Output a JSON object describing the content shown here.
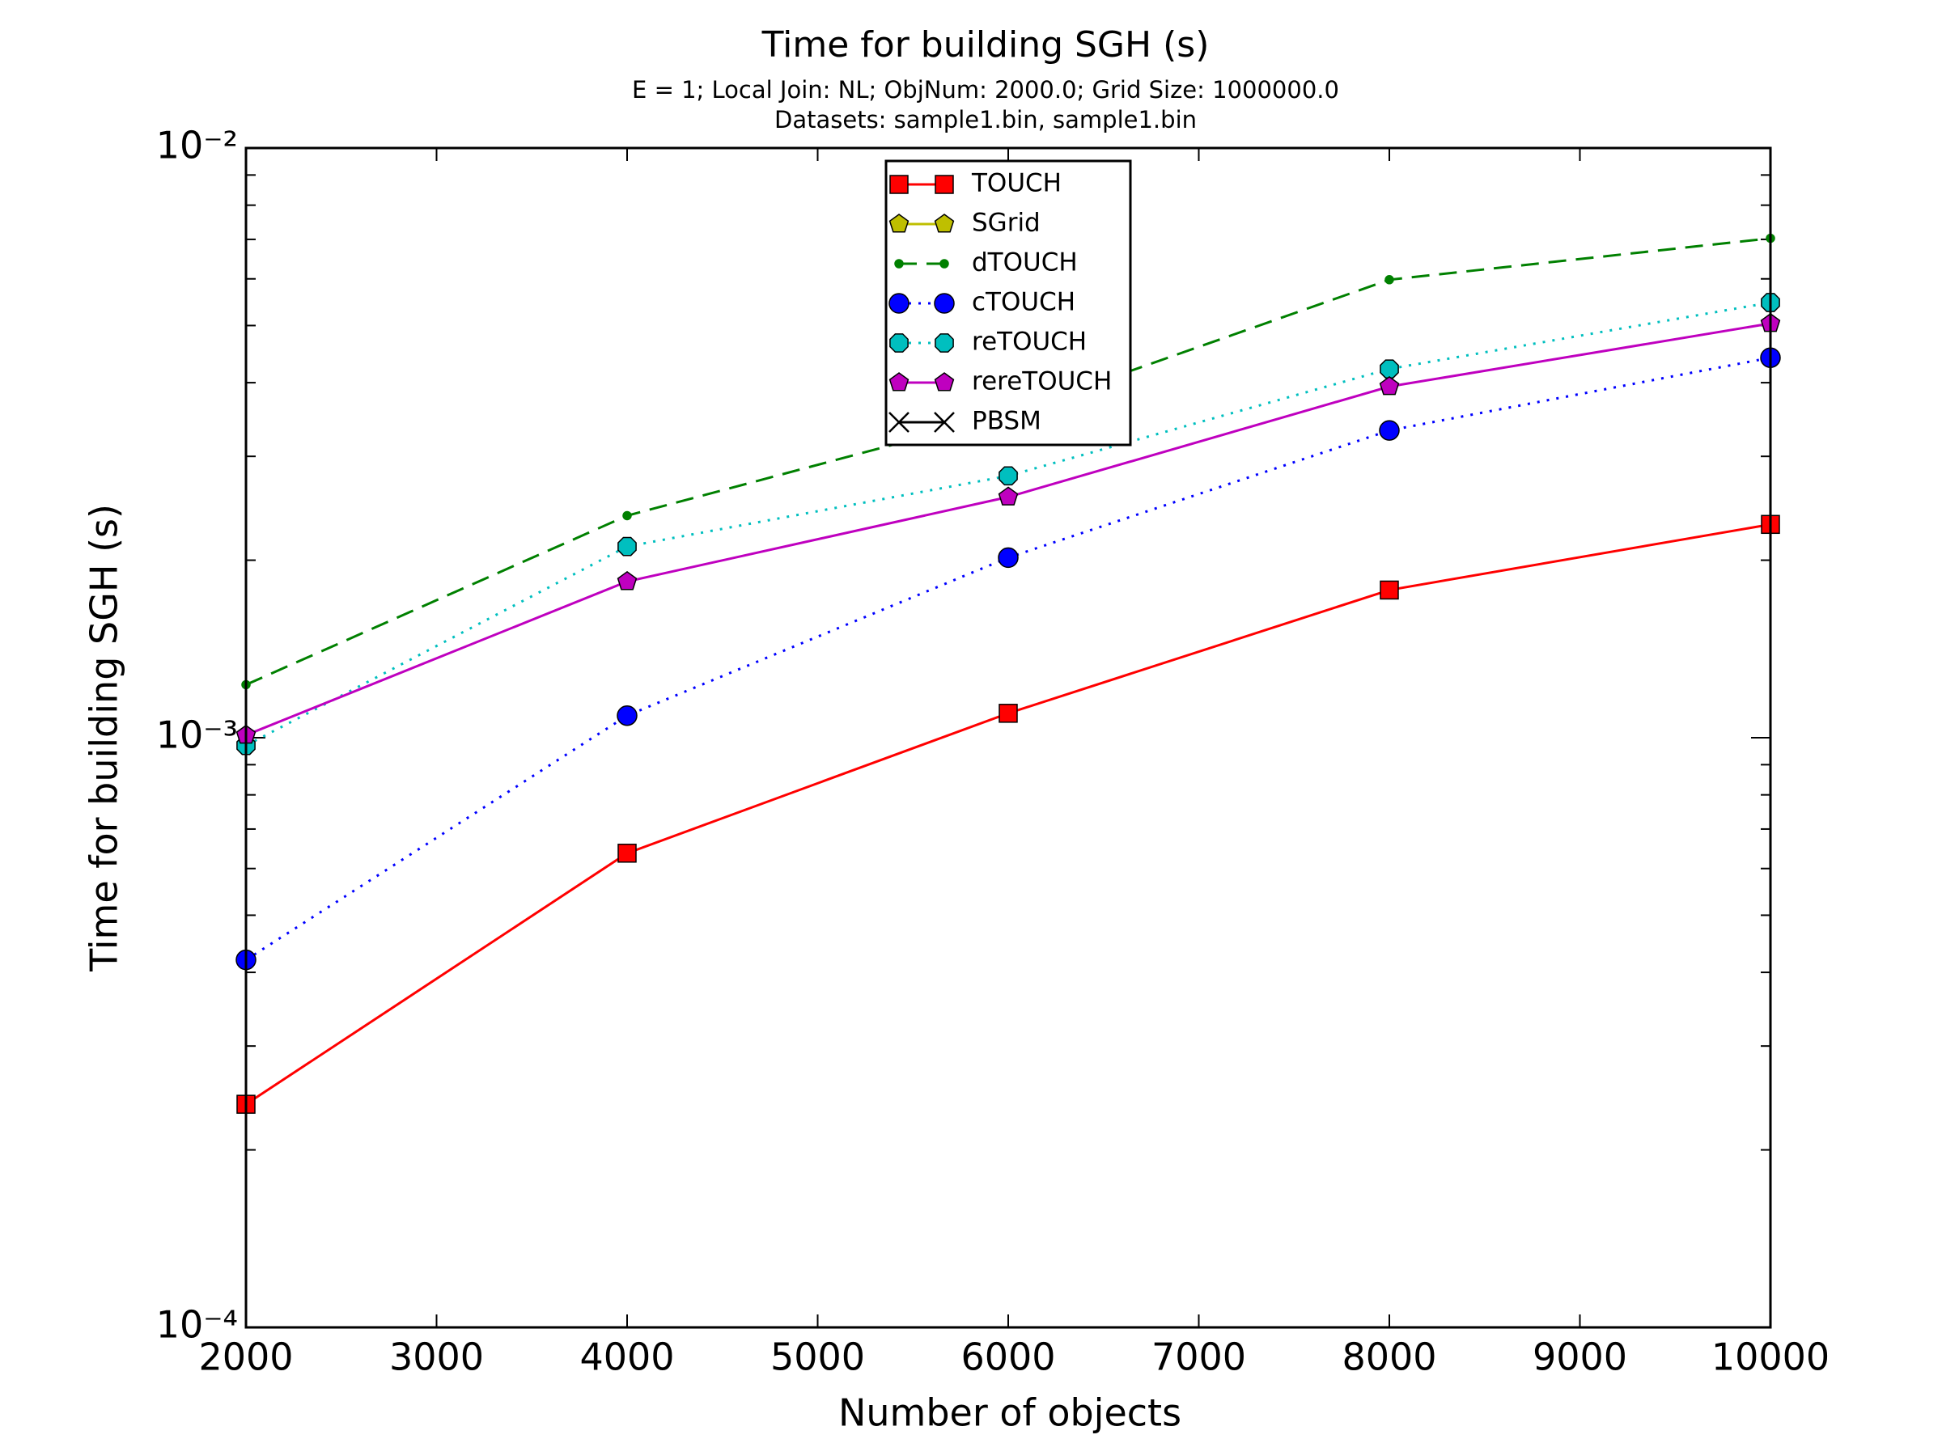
{
  "chart_data": {
    "type": "line",
    "title": "Time for building SGH (s)",
    "subtitle": [
      "E = 1; Local Join: NL; ObjNum: 2000.0; Grid Size: 1000000.0",
      "Datasets: sample1.bin, sample1.bin"
    ],
    "xlabel": "Number of objects",
    "ylabel": "Time for building SGH (s)",
    "x": [
      2000,
      4000,
      6000,
      8000,
      10000
    ],
    "xlim": [
      2000,
      10000
    ],
    "xticks": [
      2000,
      3000,
      4000,
      5000,
      6000,
      7000,
      8000,
      9000,
      10000
    ],
    "ylim": [
      0.0001,
      0.01
    ],
    "log_y": true,
    "yticks": [
      {
        "value": 0.0001,
        "label": "10⁻⁴"
      },
      {
        "value": 0.001,
        "label": "10⁻³"
      },
      {
        "value": 0.01,
        "label": "10⁻²"
      }
    ],
    "yminorticks": [
      0.0002,
      0.0003,
      0.0004,
      0.0005,
      0.0006,
      0.0007,
      0.0008,
      0.0009,
      0.002,
      0.003,
      0.004,
      0.005,
      0.006,
      0.007,
      0.008,
      0.009
    ],
    "legend": "upper center",
    "series": [
      {
        "name": "TOUCH",
        "color": "#ff0000",
        "marker": "square",
        "linestyle": "solid",
        "values": [
          0.000239,
          0.000637,
          0.0011,
          0.00178,
          0.0023
        ]
      },
      {
        "name": "SGrid",
        "color": "#bfbf00",
        "marker": "pentagon",
        "linestyle": "solid",
        "values": [
          null,
          null,
          null,
          null,
          null
        ]
      },
      {
        "name": "dTOUCH",
        "color": "#008000",
        "marker": "dot",
        "linestyle": "dashed",
        "values": [
          0.00123,
          0.00238,
          0.00354,
          0.00598,
          0.00703
        ]
      },
      {
        "name": "cTOUCH",
        "color": "#0000ff",
        "marker": "circle",
        "linestyle": "dotted",
        "values": [
          0.00042,
          0.00109,
          0.00202,
          0.00332,
          0.00441
        ]
      },
      {
        "name": "reTOUCH",
        "color": "#00bfbf",
        "marker": "octagon",
        "linestyle": "dotted",
        "values": [
          0.00097,
          0.00211,
          0.00278,
          0.00422,
          0.00547
        ]
      },
      {
        "name": "rereTOUCH",
        "color": "#bf00bf",
        "marker": "pentagon",
        "linestyle": "solid",
        "values": [
          0.00101,
          0.00184,
          0.00256,
          0.00394,
          0.00504
        ]
      },
      {
        "name": "PBSM",
        "color": "#000000",
        "marker": "x",
        "linestyle": "solid",
        "values": [
          null,
          null,
          null,
          null,
          null
        ]
      }
    ]
  }
}
